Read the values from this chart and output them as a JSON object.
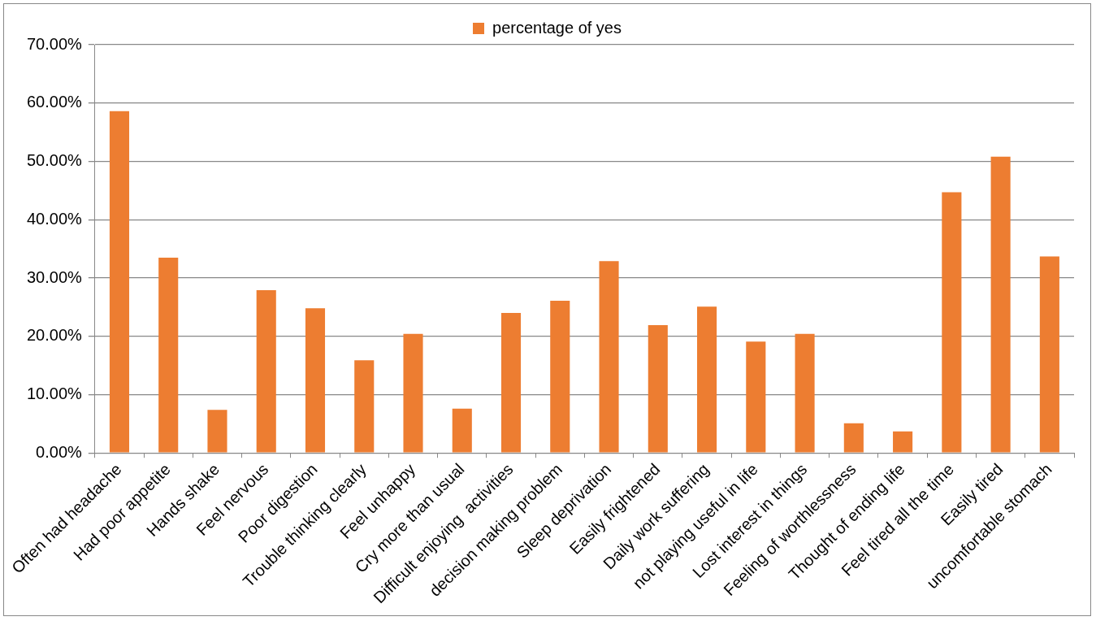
{
  "chart_data": {
    "type": "bar",
    "categories": [
      "Often had headache",
      "Had poor appetite",
      "Hands shake",
      "Feel nervous",
      "Poor digestion",
      "Trouble thinking clearly",
      "Feel unhappy",
      "Cry more than usual",
      "Difficult enjoying  activities",
      "decision making problem",
      "Sleep deprivation",
      "Easily frightened",
      "Daily work suffering",
      "not playing useful in life",
      "Lost interest in things",
      "Feeling of worthlessness",
      "Thought of ending life",
      "Feel tired all the time",
      "Easily tired",
      "uncomfortable stomach"
    ],
    "series": [
      {
        "name": "percentage of yes",
        "color": "#ed7d31",
        "values": [
          58.6,
          33.5,
          7.4,
          27.9,
          24.8,
          15.9,
          20.4,
          7.6,
          24.0,
          26.1,
          32.9,
          21.9,
          25.1,
          19.1,
          20.4,
          5.1,
          3.7,
          44.7,
          50.8,
          33.7
        ]
      }
    ],
    "ylim": [
      0,
      70
    ],
    "yticks": [
      {
        "value": 0,
        "label": "0.00%"
      },
      {
        "value": 10,
        "label": "10.00%"
      },
      {
        "value": 20,
        "label": "20.00%"
      },
      {
        "value": 30,
        "label": "30.00%"
      },
      {
        "value": 40,
        "label": "40.00%"
      },
      {
        "value": 50,
        "label": "50.00%"
      },
      {
        "value": 60,
        "label": "60.00%"
      },
      {
        "value": 70,
        "label": "70.00%"
      }
    ],
    "grid": "y",
    "legend": "top"
  }
}
